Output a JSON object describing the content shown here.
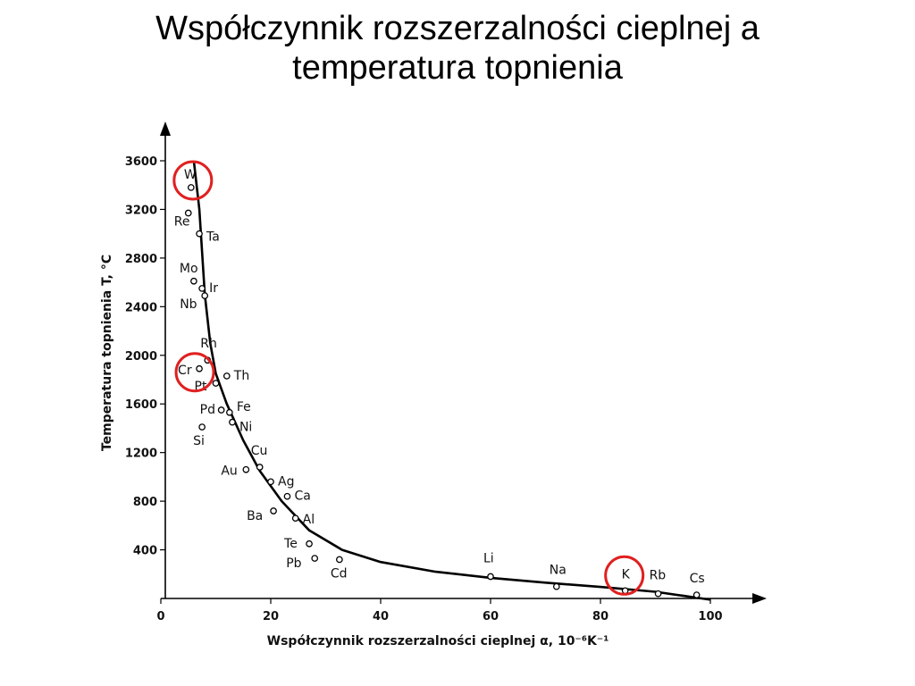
{
  "title": {
    "line1": "Współczynnik rozszerzalności cieplnej a",
    "line2": "temperatura topnienia"
  },
  "chart_data": {
    "type": "scatter",
    "xlabel": "Współczynnik rozszerzalności cieplnej α, 10⁻⁶K⁻¹",
    "ylabel": "Temperatura topnienia T, °C",
    "xlim": [
      0,
      105
    ],
    "ylim": [
      0,
      3800
    ],
    "x_ticks": [
      "0",
      "20",
      "40",
      "60",
      "80",
      "100"
    ],
    "y_ticks": [
      "400",
      "800",
      "1200",
      "1600",
      "2000",
      "2400",
      "2800",
      "3200",
      "3600"
    ],
    "points": [
      {
        "label": "W",
        "x": 5.5,
        "y": 3380
      },
      {
        "label": "Re",
        "x": 5,
        "y": 3170
      },
      {
        "label": "Ta",
        "x": 7,
        "y": 3000
      },
      {
        "label": "Mo",
        "x": 6,
        "y": 2610
      },
      {
        "label": "Ir",
        "x": 7.5,
        "y": 2550
      },
      {
        "label": "Nb",
        "x": 8,
        "y": 2490
      },
      {
        "label": "Rh",
        "x": 8.5,
        "y": 1960
      },
      {
        "label": "Cr",
        "x": 7,
        "y": 1890
      },
      {
        "label": "Th",
        "x": 12,
        "y": 1830
      },
      {
        "label": "Pt",
        "x": 10,
        "y": 1770
      },
      {
        "label": "Pd",
        "x": 11,
        "y": 1550
      },
      {
        "label": "Fe",
        "x": 12.5,
        "y": 1530
      },
      {
        "label": "Ni",
        "x": 13,
        "y": 1450
      },
      {
        "label": "Si",
        "x": 7.5,
        "y": 1410
      },
      {
        "label": "Cu",
        "x": 18,
        "y": 1080
      },
      {
        "label": "Au",
        "x": 15.5,
        "y": 1060
      },
      {
        "label": "Ag",
        "x": 20,
        "y": 960
      },
      {
        "label": "Ca",
        "x": 23,
        "y": 840
      },
      {
        "label": "Ba",
        "x": 20.5,
        "y": 720
      },
      {
        "label": "Al",
        "x": 24.5,
        "y": 660
      },
      {
        "label": "Te",
        "x": 27,
        "y": 450
      },
      {
        "label": "Pb",
        "x": 28,
        "y": 330
      },
      {
        "label": "Cd",
        "x": 32.5,
        "y": 320
      },
      {
        "label": "Li",
        "x": 60,
        "y": 180
      },
      {
        "label": "Na",
        "x": 72,
        "y": 98
      },
      {
        "label": "K",
        "x": 84.5,
        "y": 64
      },
      {
        "label": "Rb",
        "x": 90.5,
        "y": 39
      },
      {
        "label": "Cs",
        "x": 97.5,
        "y": 29
      }
    ],
    "trend_curve": [
      [
        6,
        3600
      ],
      [
        7,
        3200
      ],
      [
        8,
        2500
      ],
      [
        9,
        2100
      ],
      [
        10,
        1850
      ],
      [
        12,
        1600
      ],
      [
        15,
        1300
      ],
      [
        18,
        1050
      ],
      [
        22,
        800
      ],
      [
        27,
        560
      ],
      [
        33,
        400
      ],
      [
        40,
        300
      ],
      [
        50,
        220
      ],
      [
        60,
        170
      ],
      [
        70,
        130
      ],
      [
        80,
        95
      ],
      [
        90,
        55
      ],
      [
        100,
        -10
      ]
    ],
    "highlighted": [
      "W",
      "Cr",
      "K"
    ],
    "highlight_color": "#e02020",
    "grid": false
  }
}
